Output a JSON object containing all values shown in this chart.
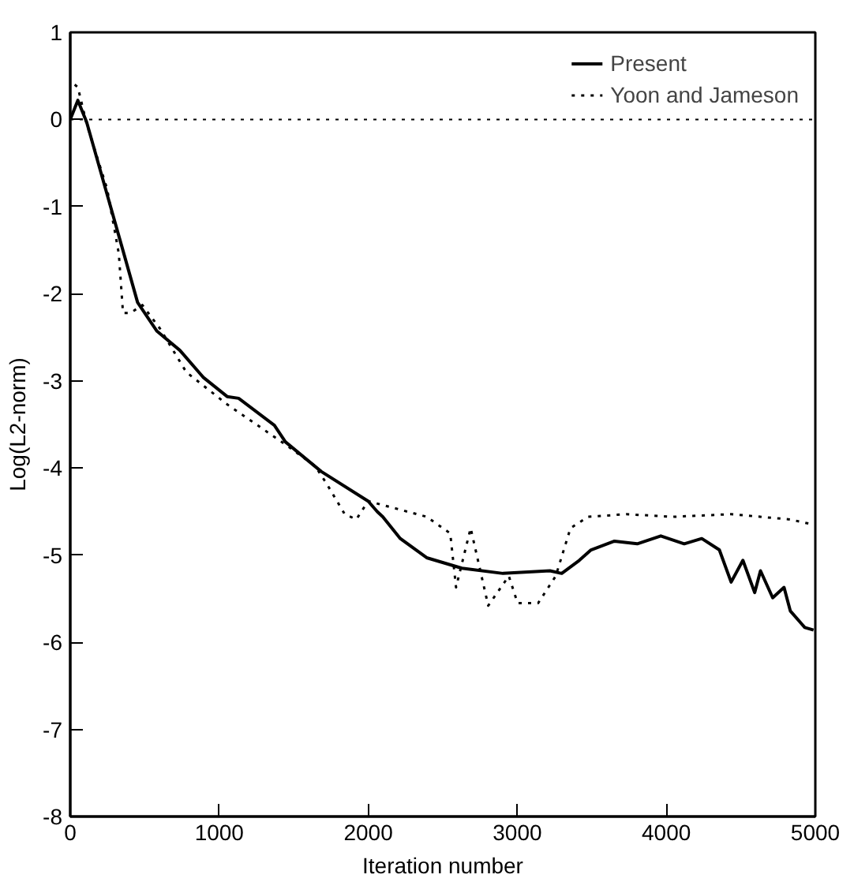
{
  "chart_data": {
    "type": "line",
    "xlabel": "Iteration number",
    "ylabel": "Log(L2-norm)",
    "xlim": [
      0,
      5000
    ],
    "ylim": [
      -8,
      1
    ],
    "xticks": [
      0,
      1000,
      2000,
      3000,
      4000,
      5000
    ],
    "yticks": [
      -8,
      -7,
      -6,
      -5,
      -4,
      -3,
      -2,
      -1,
      0,
      1
    ],
    "grid": false,
    "legend": "top right",
    "ref_lines": [
      {
        "axis": "y",
        "value": 0,
        "label": null,
        "color": "#000000",
        "line_style": "dotted"
      }
    ],
    "series": [
      {
        "name": "Present",
        "color": "#000000",
        "line_style": "solid",
        "x": [
          0,
          51,
          110,
          345,
          452,
          582,
          736,
          893,
          1053,
          1130,
          1370,
          1444,
          1684,
          1999,
          2060,
          2097,
          2215,
          2392,
          2628,
          2904,
          3219,
          3298,
          3416,
          3495,
          3652,
          3805,
          3963,
          4120,
          4238,
          4356,
          4435,
          4514,
          4593,
          4632,
          4714,
          4790,
          4832,
          4929,
          4988
        ],
        "values": [
          0,
          0.22,
          -0.03,
          -1.45,
          -2.1,
          -2.43,
          -2.65,
          -2.96,
          -3.18,
          -3.2,
          -3.51,
          -3.7,
          -4.04,
          -4.38,
          -4.5,
          -4.56,
          -4.81,
          -5.03,
          -5.15,
          -5.21,
          -5.18,
          -5.21,
          -5.06,
          -4.94,
          -4.84,
          -4.87,
          -4.78,
          -4.87,
          -4.81,
          -4.94,
          -5.31,
          -5.06,
          -5.43,
          -5.18,
          -5.49,
          -5.37,
          -5.64,
          -5.83,
          -5.86
        ]
      },
      {
        "name": "Yoon and Jameson",
        "color": "#000000",
        "line_style": "dotted",
        "x": [
          30,
          51,
          110,
          248,
          326,
          354,
          405,
          484,
          602,
          779,
          1053,
          1444,
          1645,
          1724,
          1842,
          1920,
          1999,
          2196,
          2392,
          2550,
          2589,
          2687,
          2805,
          2943,
          3002,
          3140,
          3258,
          3357,
          3475,
          3731,
          4046,
          4435,
          4829,
          4988
        ],
        "values": [
          0.4,
          0.37,
          -0.05,
          -0.8,
          -1.54,
          -2.22,
          -2.22,
          -2.13,
          -2.4,
          -2.9,
          -3.27,
          -3.73,
          -3.98,
          -4.19,
          -4.53,
          -4.59,
          -4.38,
          -4.47,
          -4.56,
          -4.75,
          -5.37,
          -4.69,
          -5.58,
          -5.24,
          -5.55,
          -5.55,
          -5.24,
          -4.69,
          -4.56,
          -4.53,
          -4.56,
          -4.53,
          -4.59,
          -4.65
        ]
      }
    ]
  }
}
